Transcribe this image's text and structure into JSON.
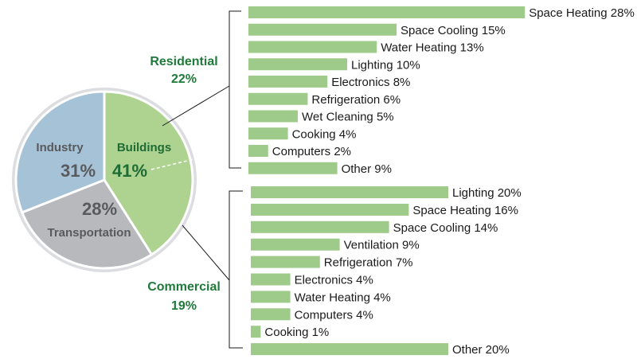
{
  "chart_data": {
    "type": "pie",
    "pie": {
      "slices": [
        {
          "name": "Buildings",
          "value": 41,
          "label": "41%",
          "color": "#aed391"
        },
        {
          "name": "Transportation",
          "value": 28,
          "label": "28%",
          "color": "#b8b9bd"
        },
        {
          "name": "Industry",
          "value": 31,
          "label": "31%",
          "color": "#a6c2d6"
        }
      ],
      "edge_color": "#dcdde0",
      "text_colors": {
        "Buildings": "#1f6b34",
        "Transportation": "#595a5e",
        "Industry": "#595a5e"
      }
    },
    "breakdowns": [
      {
        "type": "bar",
        "group_label": "Residential",
        "group_value": "22%",
        "categories": [
          "Space Heating",
          "Space Cooling",
          "Water Heating",
          "Lighting",
          "Electronics",
          "Refrigeration",
          "Wet Cleaning",
          "Cooking",
          "Computers",
          "Other"
        ],
        "values": [
          28,
          15,
          13,
          10,
          8,
          6,
          5,
          4,
          2,
          9
        ],
        "labels": [
          "Space Heating 28%",
          "Space Cooling 15%",
          "Water Heating 13%",
          "Lighting 10%",
          "Electronics 8%",
          "Refrigeration 6%",
          "Wet Cleaning 5%",
          "Cooking 4%",
          "Computers 2%",
          "Other 9%"
        ]
      },
      {
        "type": "bar",
        "group_label": "Commercial",
        "group_value": "19%",
        "categories": [
          "Lighting",
          "Space Heating",
          "Space Cooling",
          "Ventilation",
          "Refrigeration",
          "Electronics",
          "Water Heating",
          "Computers",
          "Cooking",
          "Other"
        ],
        "values": [
          20,
          16,
          14,
          9,
          7,
          4,
          4,
          4,
          1,
          20
        ],
        "labels": [
          "Lighting 20%",
          "Space Heating 16%",
          "Space Cooling 14%",
          "Ventilation 9%",
          "Refrigeration 7%",
          "Electronics 4%",
          "Water Heating 4%",
          "Computers 4%",
          "Cooking 1%",
          "Other 20%"
        ]
      }
    ],
    "colors": {
      "bar": "#9fcb8a",
      "connector": "#1a1a1a",
      "group_text": "#1f7a3a"
    }
  }
}
